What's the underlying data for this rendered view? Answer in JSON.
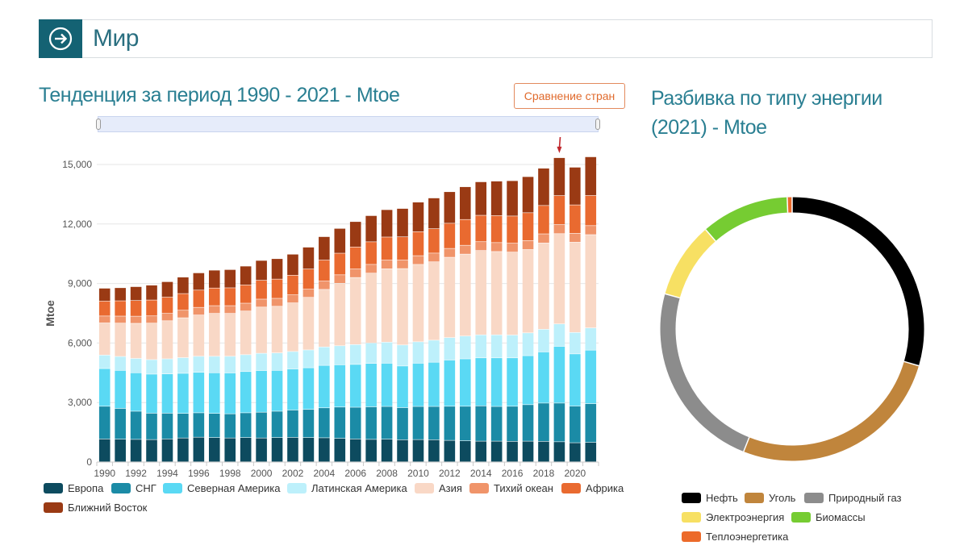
{
  "header": {
    "title": "Мир",
    "icon": "arrow-right-circle-icon"
  },
  "left_panel": {
    "title": "Тенденция за период 1990 - 2021 - Mtoe",
    "compare_button": "Сравнение стран"
  },
  "right_panel": {
    "title": "Разбивка по типу энергии (2021) - Mtoe"
  },
  "colors": {
    "accent": "#146273",
    "title": "#2a7f92",
    "button": "#e06a2c",
    "arrow": "#c0272d"
  },
  "chart_data": [
    {
      "type": "bar",
      "stacked": true,
      "ylabel": "Mtoe",
      "ylim": [
        0,
        15000
      ],
      "yticks": [
        "0",
        "3,000",
        "6,000",
        "9,000",
        "12,000",
        "15,000"
      ],
      "x": [
        1990,
        1991,
        1992,
        1993,
        1994,
        1995,
        1996,
        1997,
        1998,
        1999,
        2000,
        2001,
        2002,
        2003,
        2004,
        2005,
        2006,
        2007,
        2008,
        2009,
        2010,
        2011,
        2012,
        2013,
        2014,
        2015,
        2016,
        2017,
        2018,
        2019,
        2020,
        2021
      ],
      "xtick_labels": [
        "1990",
        "1992",
        "1994",
        "1996",
        "1998",
        "2000",
        "2002",
        "2004",
        "2006",
        "2008",
        "2010",
        "2012",
        "2014",
        "2016",
        "2018",
        "2020"
      ],
      "highlight_year": 2019,
      "series": [
        {
          "name": "Европа",
          "color": "#0d4b5f",
          "values": [
            1150,
            1140,
            1130,
            1120,
            1150,
            1200,
            1240,
            1220,
            1200,
            1220,
            1200,
            1220,
            1230,
            1220,
            1210,
            1180,
            1150,
            1130,
            1140,
            1110,
            1120,
            1110,
            1080,
            1060,
            1040,
            1040,
            1030,
            1040,
            1030,
            1010,
            960,
            980
          ]
        },
        {
          "name": "СНГ",
          "color": "#1b8ba6",
          "values": [
            1650,
            1550,
            1420,
            1330,
            1300,
            1240,
            1230,
            1220,
            1220,
            1250,
            1300,
            1330,
            1380,
            1420,
            1510,
            1580,
            1600,
            1640,
            1650,
            1620,
            1670,
            1680,
            1720,
            1740,
            1780,
            1750,
            1770,
            1840,
            1930,
            1950,
            1850,
            1950
          ]
        },
        {
          "name": "Северная Америка",
          "color": "#5ad9f4",
          "values": [
            1900,
            1920,
            1940,
            1970,
            1980,
            2020,
            2040,
            2050,
            2060,
            2080,
            2100,
            2060,
            2070,
            2100,
            2140,
            2130,
            2160,
            2190,
            2180,
            2100,
            2180,
            2230,
            2330,
            2390,
            2420,
            2450,
            2440,
            2470,
            2580,
            2860,
            2630,
            2700
          ]
        },
        {
          "name": "Латинская Америка",
          "color": "#bdf0fb",
          "values": [
            680,
            700,
            720,
            730,
            760,
            790,
            810,
            830,
            840,
            850,
            870,
            880,
            880,
            900,
            930,
            960,
            1000,
            1030,
            1060,
            1060,
            1080,
            1110,
            1130,
            1150,
            1160,
            1160,
            1150,
            1150,
            1140,
            1130,
            1080,
            1120
          ]
        },
        {
          "name": "Азия",
          "color": "#f9d8c6",
          "values": [
            1620,
            1680,
            1770,
            1840,
            1920,
            2010,
            2080,
            2160,
            2160,
            2200,
            2330,
            2350,
            2450,
            2650,
            2900,
            3150,
            3380,
            3520,
            3700,
            3850,
            3900,
            3950,
            4050,
            4130,
            4250,
            4200,
            4180,
            4200,
            4350,
            4550,
            4550,
            4700
          ]
        },
        {
          "name": "Тихий океан",
          "color": "#f0946a",
          "values": [
            350,
            355,
            360,
            365,
            370,
            380,
            385,
            390,
            390,
            395,
            400,
            400,
            405,
            410,
            420,
            425,
            430,
            440,
            440,
            430,
            440,
            440,
            445,
            445,
            445,
            450,
            450,
            455,
            460,
            460,
            450,
            455
          ]
        },
        {
          "name": "Африка",
          "color": "#e96a30",
          "values": [
            750,
            770,
            790,
            800,
            820,
            840,
            870,
            890,
            900,
            920,
            950,
            970,
            990,
            1020,
            1060,
            1090,
            1110,
            1140,
            1160,
            1170,
            1210,
            1230,
            1270,
            1300,
            1330,
            1360,
            1370,
            1400,
            1430,
            1460,
            1430,
            1520
          ]
        },
        {
          "name": "Ближний Восток",
          "color": "#9a3a14",
          "values": [
            650,
            660,
            700,
            750,
            780,
            830,
            870,
            900,
            920,
            950,
            1000,
            1030,
            1060,
            1100,
            1180,
            1250,
            1280,
            1320,
            1380,
            1430,
            1490,
            1550,
            1590,
            1650,
            1690,
            1740,
            1780,
            1820,
            1880,
            1910,
            1900,
            1950
          ]
        }
      ]
    },
    {
      "type": "pie",
      "donut": true,
      "labels": [
        "Нефть",
        "Уголь",
        "Природный газ",
        "Электроэнергия",
        "Биомассы",
        "Теплоэнергетика"
      ],
      "values": [
        29.5,
        26.5,
        23.3,
        9.3,
        10.8,
        0.6
      ],
      "colors": [
        "#000000",
        "#c0853c",
        "#8c8c8c",
        "#f7e063",
        "#76cc32",
        "#ec6a2a"
      ]
    }
  ]
}
